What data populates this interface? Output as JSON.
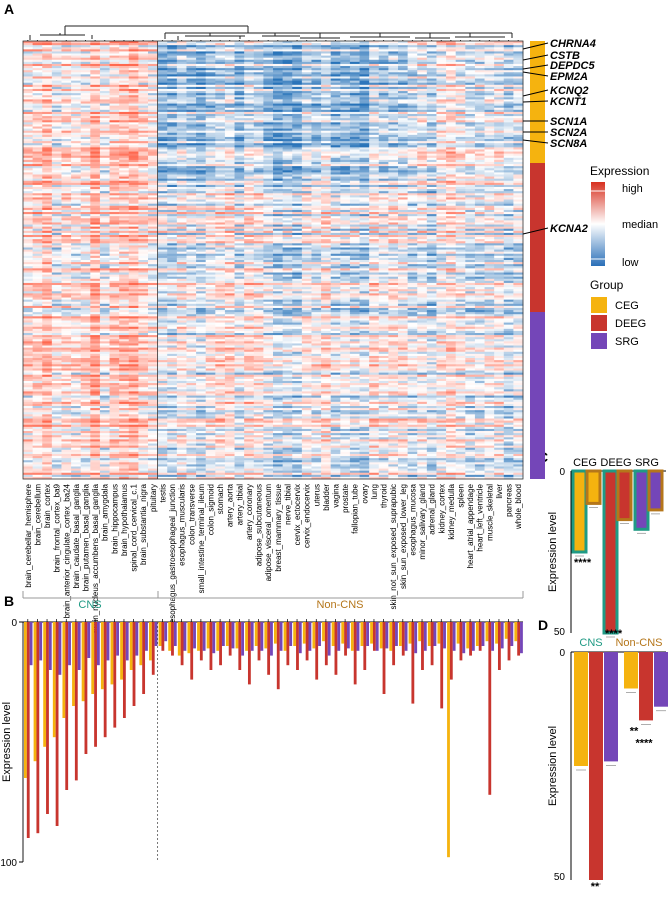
{
  "panels": {
    "A": "A",
    "B": "B",
    "C": "C",
    "D": "D"
  },
  "colors": {
    "CEG": "#f5b30f",
    "DEEG": "#c8352e",
    "SRG": "#7446b8",
    "CNS": "#1f9a84",
    "NonCNS": "#b5761a",
    "high": "#d7301f",
    "low": "#2a6fb8"
  },
  "heatmap": {
    "genes": [
      "CHRNA4",
      "CSTB",
      "DEPDC5",
      "EPM2A",
      "KCNQ2",
      "KCNT1",
      "SCN1A",
      "SCN2A",
      "SCN8A",
      "KCNA2"
    ],
    "tissues": [
      "brain_cerebellar_hemisphere",
      "brain_cerebellum",
      "brain_cortex",
      "brain_frontal_cortex_ba9",
      "brain_anterior_cingulate_cortex_ba24",
      "brain_caudate_basal_ganglia",
      "brain_putamen_basal_ganglia",
      "brain_nucleus_accumbens_basal_ganglia",
      "brain_amygdala",
      "brain_hippocampus",
      "brain_hypothalamus",
      "spinal_cord_cervical_c.1",
      "brain_substantia_nigra",
      "pituitary",
      "testis",
      "esophagus_gastroesophageal_junction",
      "esophagus_muscularis",
      "colon_transverse",
      "small_intestine_terminal_ileum",
      "colon_sigmoid",
      "stomach",
      "artery_aorta",
      "artery_tibial",
      "artery_coronary",
      "adipose_subcutaneous",
      "adipose_visceral_omentum",
      "breast_mammary_tissue",
      "nerve_tibial",
      "cervix_ectocervix",
      "cervix_endocervix",
      "uterus",
      "bladder",
      "vagina",
      "prostate",
      "fallopian_tube",
      "ovary",
      "lung",
      "thyroid",
      "skin_not_sun_exposed_suprapubic",
      "skin_sun_exposed_lower_leg",
      "esophagus_mucosa",
      "minor_salivary_gland",
      "adrenal_gland",
      "kidney_cortex",
      "kidney_medulla",
      "spleen",
      "heart_atrial_appendage",
      "heart_left_ventricle",
      "muscle_skeletal",
      "liver",
      "pancreas",
      "whole_blood"
    ],
    "legend": {
      "expression_title": "Expression",
      "high": "high",
      "median": "median",
      "low": "low",
      "group_title": "Group",
      "groups": [
        "CEG",
        "DEEG",
        "SRG"
      ]
    }
  },
  "chart_data": [
    {
      "type": "bar",
      "panel": "B",
      "title": "",
      "ylabel": "Expression level",
      "ylim": [
        0,
        100
      ],
      "y_inverted": true,
      "yticks": [
        "0",
        "100"
      ],
      "sections": [
        "CNS",
        "Non-CNS"
      ],
      "tissue_order": "same as heatmap columns (52 tissues)",
      "series": [
        {
          "name": "CEG",
          "values": [
            65,
            58,
            52,
            48,
            40,
            35,
            33,
            30,
            28,
            26,
            24,
            20,
            18,
            16,
            10,
            12,
            14,
            13,
            12,
            11,
            12,
            10,
            11,
            12,
            10,
            11,
            9,
            12,
            10,
            9,
            11,
            8,
            10,
            9,
            12,
            10,
            9,
            11,
            12,
            10,
            9,
            8,
            10,
            9,
            98,
            9,
            11,
            10,
            8,
            9,
            7,
            8
          ]
        },
        {
          "name": "DEEG",
          "values": [
            90,
            88,
            80,
            85,
            70,
            66,
            55,
            52,
            48,
            44,
            40,
            35,
            30,
            22,
            12,
            14,
            18,
            24,
            16,
            20,
            18,
            14,
            20,
            26,
            16,
            22,
            28,
            18,
            20,
            16,
            24,
            18,
            22,
            14,
            26,
            20,
            12,
            30,
            18,
            14,
            34,
            20,
            18,
            36,
            24,
            16,
            14,
            12,
            72,
            20,
            16,
            14
          ]
        },
        {
          "name": "SRG",
          "values": [
            18,
            16,
            20,
            22,
            18,
            20,
            15,
            18,
            16,
            14,
            16,
            14,
            12,
            10,
            8,
            10,
            12,
            11,
            12,
            13,
            10,
            11,
            14,
            12,
            12,
            14,
            12,
            10,
            13,
            12,
            10,
            14,
            12,
            11,
            12,
            10,
            12,
            11,
            10,
            12,
            13,
            12,
            10,
            11,
            12,
            13,
            12,
            10,
            12,
            11,
            10,
            13
          ]
        }
      ]
    },
    {
      "type": "bar",
      "panel": "C",
      "ylabel": "Expression level",
      "ylim": [
        0,
        50
      ],
      "y_inverted": true,
      "yticks": [
        "0",
        "50"
      ],
      "categories": [
        "CEG",
        "DEEG",
        "SRG"
      ],
      "series": [
        {
          "name": "CNS",
          "values": [
            25,
            50,
            18
          ]
        },
        {
          "name": "Non-CNS",
          "values": [
            10,
            15,
            12
          ]
        }
      ],
      "annotations": [
        "****",
        "****"
      ]
    },
    {
      "type": "bar",
      "panel": "D",
      "ylabel": "Expression level",
      "ylim": [
        0,
        50
      ],
      "y_inverted": true,
      "yticks": [
        "0",
        "50"
      ],
      "categories": [
        "CNS",
        "Non-CNS"
      ],
      "series": [
        {
          "name": "CEG",
          "values": [
            25,
            8
          ]
        },
        {
          "name": "DEEG",
          "values": [
            50,
            15
          ]
        },
        {
          "name": "SRG",
          "values": [
            24,
            12
          ]
        }
      ],
      "annotations": [
        "**",
        "**",
        "****"
      ]
    }
  ]
}
